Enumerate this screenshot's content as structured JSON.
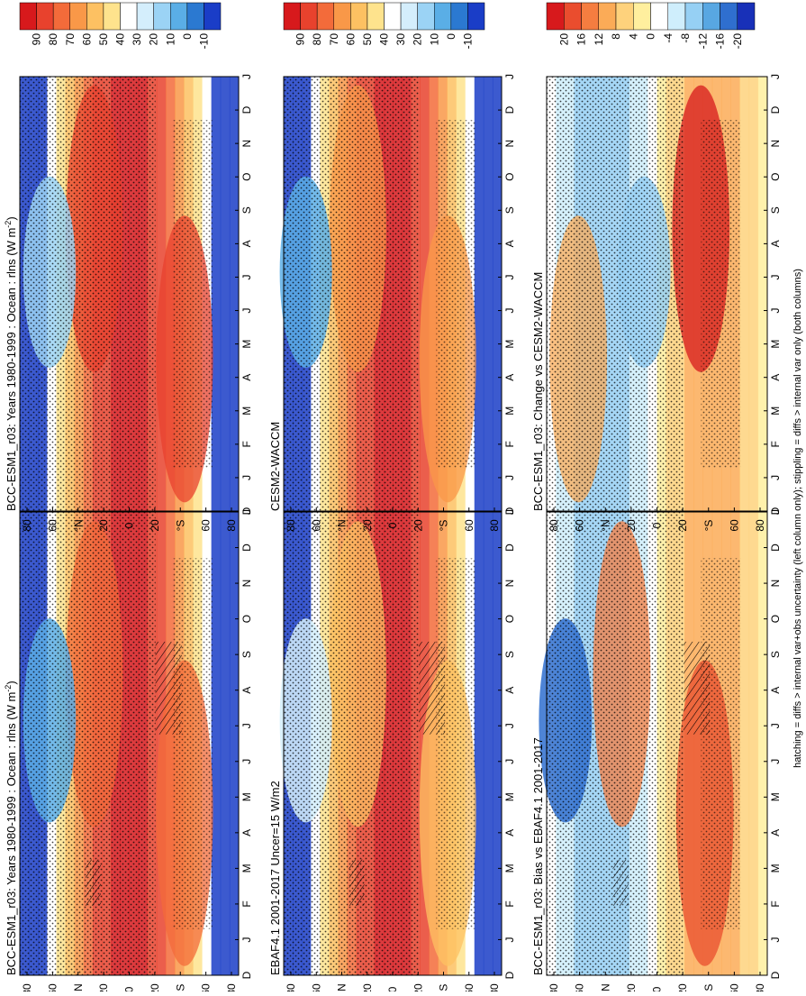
{
  "figure": {
    "caption": "hatching = diffs > internal var+obs uncertainty (left column only); stippling = diffs > internal var only (both columns)"
  },
  "chart_data": [
    {
      "type": "heatmap",
      "panel": "left-top",
      "title": "BCC-ESM1_r03: Years 1980-1999 : Ocean : rlns (W m",
      "title_units_sup": "-2",
      "title_units_close": ")",
      "x_tick_labels": [
        "D",
        "J",
        "F",
        "M",
        "A",
        "M",
        "J",
        "J",
        "A",
        "S",
        "O",
        "N",
        "D",
        "J"
      ],
      "y_tick_labels": [
        "80",
        "60",
        "°N",
        "20",
        "0",
        "20",
        "°S",
        "60",
        "80"
      ],
      "colorbar": [
        "90",
        "80",
        "70",
        "60",
        "50",
        "40",
        "30",
        "20",
        "10",
        "0",
        "-10"
      ],
      "stippling": true,
      "hatching": true
    },
    {
      "type": "heatmap",
      "panel": "right-top",
      "title": "BCC-ESM1_r03: Years 1980-1999 : Ocean : rlns (W m",
      "title_units_sup": "-2",
      "title_units_close": ")",
      "x_tick_labels": [
        "D",
        "J",
        "F",
        "M",
        "A",
        "M",
        "J",
        "J",
        "A",
        "S",
        "O",
        "N",
        "D",
        "J"
      ],
      "y_tick_labels": [
        "80",
        "60",
        "°N",
        "20",
        "0",
        "20",
        "°S",
        "60",
        "80"
      ],
      "colorbar": [
        "90",
        "80",
        "70",
        "60",
        "50",
        "40",
        "30",
        "20",
        "10",
        "0",
        "-10"
      ],
      "stippling": true,
      "hatching": false
    },
    {
      "type": "heatmap",
      "panel": "left-middle",
      "title": "EBAF4.1 2001-2017 Uncer=15 W/m2",
      "x_tick_labels": [
        "D",
        "J",
        "F",
        "M",
        "A",
        "M",
        "J",
        "J",
        "A",
        "S",
        "O",
        "N",
        "D",
        "J"
      ],
      "y_tick_labels": [
        "80",
        "60",
        "°N",
        "20",
        "0",
        "20",
        "°S",
        "60",
        "80"
      ],
      "colorbar": [
        "90",
        "80",
        "70",
        "60",
        "50",
        "40",
        "30",
        "20",
        "10",
        "0",
        "-10"
      ],
      "stippling": true,
      "hatching": true
    },
    {
      "type": "heatmap",
      "panel": "right-middle",
      "title": "CESM2-WACCM",
      "x_tick_labels": [
        "D",
        "J",
        "F",
        "M",
        "A",
        "M",
        "J",
        "J",
        "A",
        "S",
        "O",
        "N",
        "D",
        "J"
      ],
      "y_tick_labels": [
        "80",
        "60",
        "°N",
        "20",
        "0",
        "20",
        "°S",
        "60",
        "80"
      ],
      "colorbar": [
        "90",
        "80",
        "70",
        "60",
        "50",
        "40",
        "30",
        "20",
        "10",
        "0",
        "-10"
      ],
      "stippling": true,
      "hatching": false
    },
    {
      "type": "heatmap",
      "panel": "left-bottom",
      "title": "BCC-ESM1_r03: Bias vs EBAF4.1 2001-2017",
      "x_tick_labels": [
        "D",
        "J",
        "F",
        "M",
        "A",
        "M",
        "J",
        "J",
        "A",
        "S",
        "O",
        "N",
        "D",
        "J"
      ],
      "y_tick_labels": [
        "80",
        "60",
        "°N",
        "20",
        "0",
        "20",
        "°S",
        "60",
        "80"
      ],
      "colorbar": [
        "20",
        "16",
        "12",
        "8",
        "4",
        "0",
        "-4",
        "-8",
        "-12",
        "-16",
        "-20"
      ],
      "stippling": true,
      "hatching": true
    },
    {
      "type": "heatmap",
      "panel": "right-bottom",
      "title": "BCC-ESM1_r03: Change vs CESM2-WACCM",
      "x_tick_labels": [
        "D",
        "J",
        "F",
        "M",
        "A",
        "M",
        "J",
        "J",
        "A",
        "S",
        "O",
        "N",
        "D",
        "J"
      ],
      "y_tick_labels": [
        "80",
        "60",
        "°N",
        "20",
        "0",
        "20",
        "°S",
        "60",
        "80"
      ],
      "colorbar": [
        "20",
        "16",
        "12",
        "8",
        "4",
        "0",
        "-4",
        "-8",
        "-12",
        "-16",
        "-20"
      ],
      "stippling": true,
      "hatching": false
    }
  ]
}
